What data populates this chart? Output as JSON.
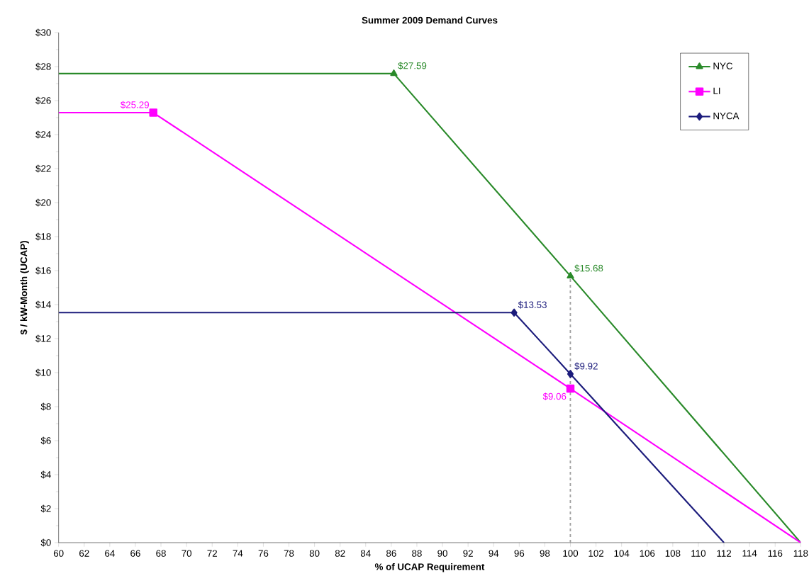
{
  "chart_data": {
    "type": "line",
    "title": "Summer 2009 Demand Curves",
    "xlabel": "% of UCAP Requirement",
    "ylabel": "$ / kW-Month (UCAP)",
    "xlim": [
      60,
      118
    ],
    "xticks": [
      60,
      62,
      64,
      66,
      68,
      70,
      72,
      74,
      76,
      78,
      80,
      82,
      84,
      86,
      88,
      90,
      92,
      94,
      96,
      98,
      100,
      102,
      104,
      106,
      108,
      110,
      112,
      114,
      116,
      118
    ],
    "ylim": [
      0,
      30
    ],
    "yticks": [
      {
        "value": 0,
        "label": "$0"
      },
      {
        "value": 2,
        "label": "$2"
      },
      {
        "value": 4,
        "label": "$4"
      },
      {
        "value": 6,
        "label": "$6"
      },
      {
        "value": 8,
        "label": "$8"
      },
      {
        "value": 10,
        "label": "$10"
      },
      {
        "value": 12,
        "label": "$12"
      },
      {
        "value": 14,
        "label": "$14"
      },
      {
        "value": 16,
        "label": "$16"
      },
      {
        "value": 18,
        "label": "$18"
      },
      {
        "value": 20,
        "label": "$20"
      },
      {
        "value": 22,
        "label": "$22"
      },
      {
        "value": 24,
        "label": "$24"
      },
      {
        "value": 26,
        "label": "$26"
      },
      {
        "value": 28,
        "label": "$28"
      },
      {
        "value": 30,
        "label": "$30"
      }
    ],
    "series": [
      {
        "name": "NYC",
        "color": "#2a8a2a",
        "marker": "triangle",
        "x": [
          60,
          86.2,
          100,
          118
        ],
        "values": [
          27.59,
          27.59,
          15.68,
          0
        ],
        "value_labels": [
          null,
          "$27.59",
          "$15.68",
          null
        ]
      },
      {
        "name": "LI",
        "color": "#ff00ff",
        "marker": "square",
        "x": [
          60,
          67.4,
          100,
          118
        ],
        "values": [
          25.29,
          25.29,
          9.06,
          0
        ],
        "value_labels": [
          null,
          "$25.29",
          "$9.06",
          null
        ]
      },
      {
        "name": "NYCA",
        "color": "#1c1c7c",
        "marker": "diamond",
        "x": [
          60,
          95.6,
          100,
          112
        ],
        "values": [
          13.53,
          13.53,
          9.92,
          0
        ],
        "value_labels": [
          null,
          "$13.53",
          "$9.92",
          null
        ]
      }
    ],
    "ref_lines": [
      {
        "axis": "x",
        "value": 100,
        "color": "#a0a0a0",
        "line_style": "dashed"
      }
    ],
    "legend": "top right",
    "grid": false,
    "line_style": "solid"
  }
}
